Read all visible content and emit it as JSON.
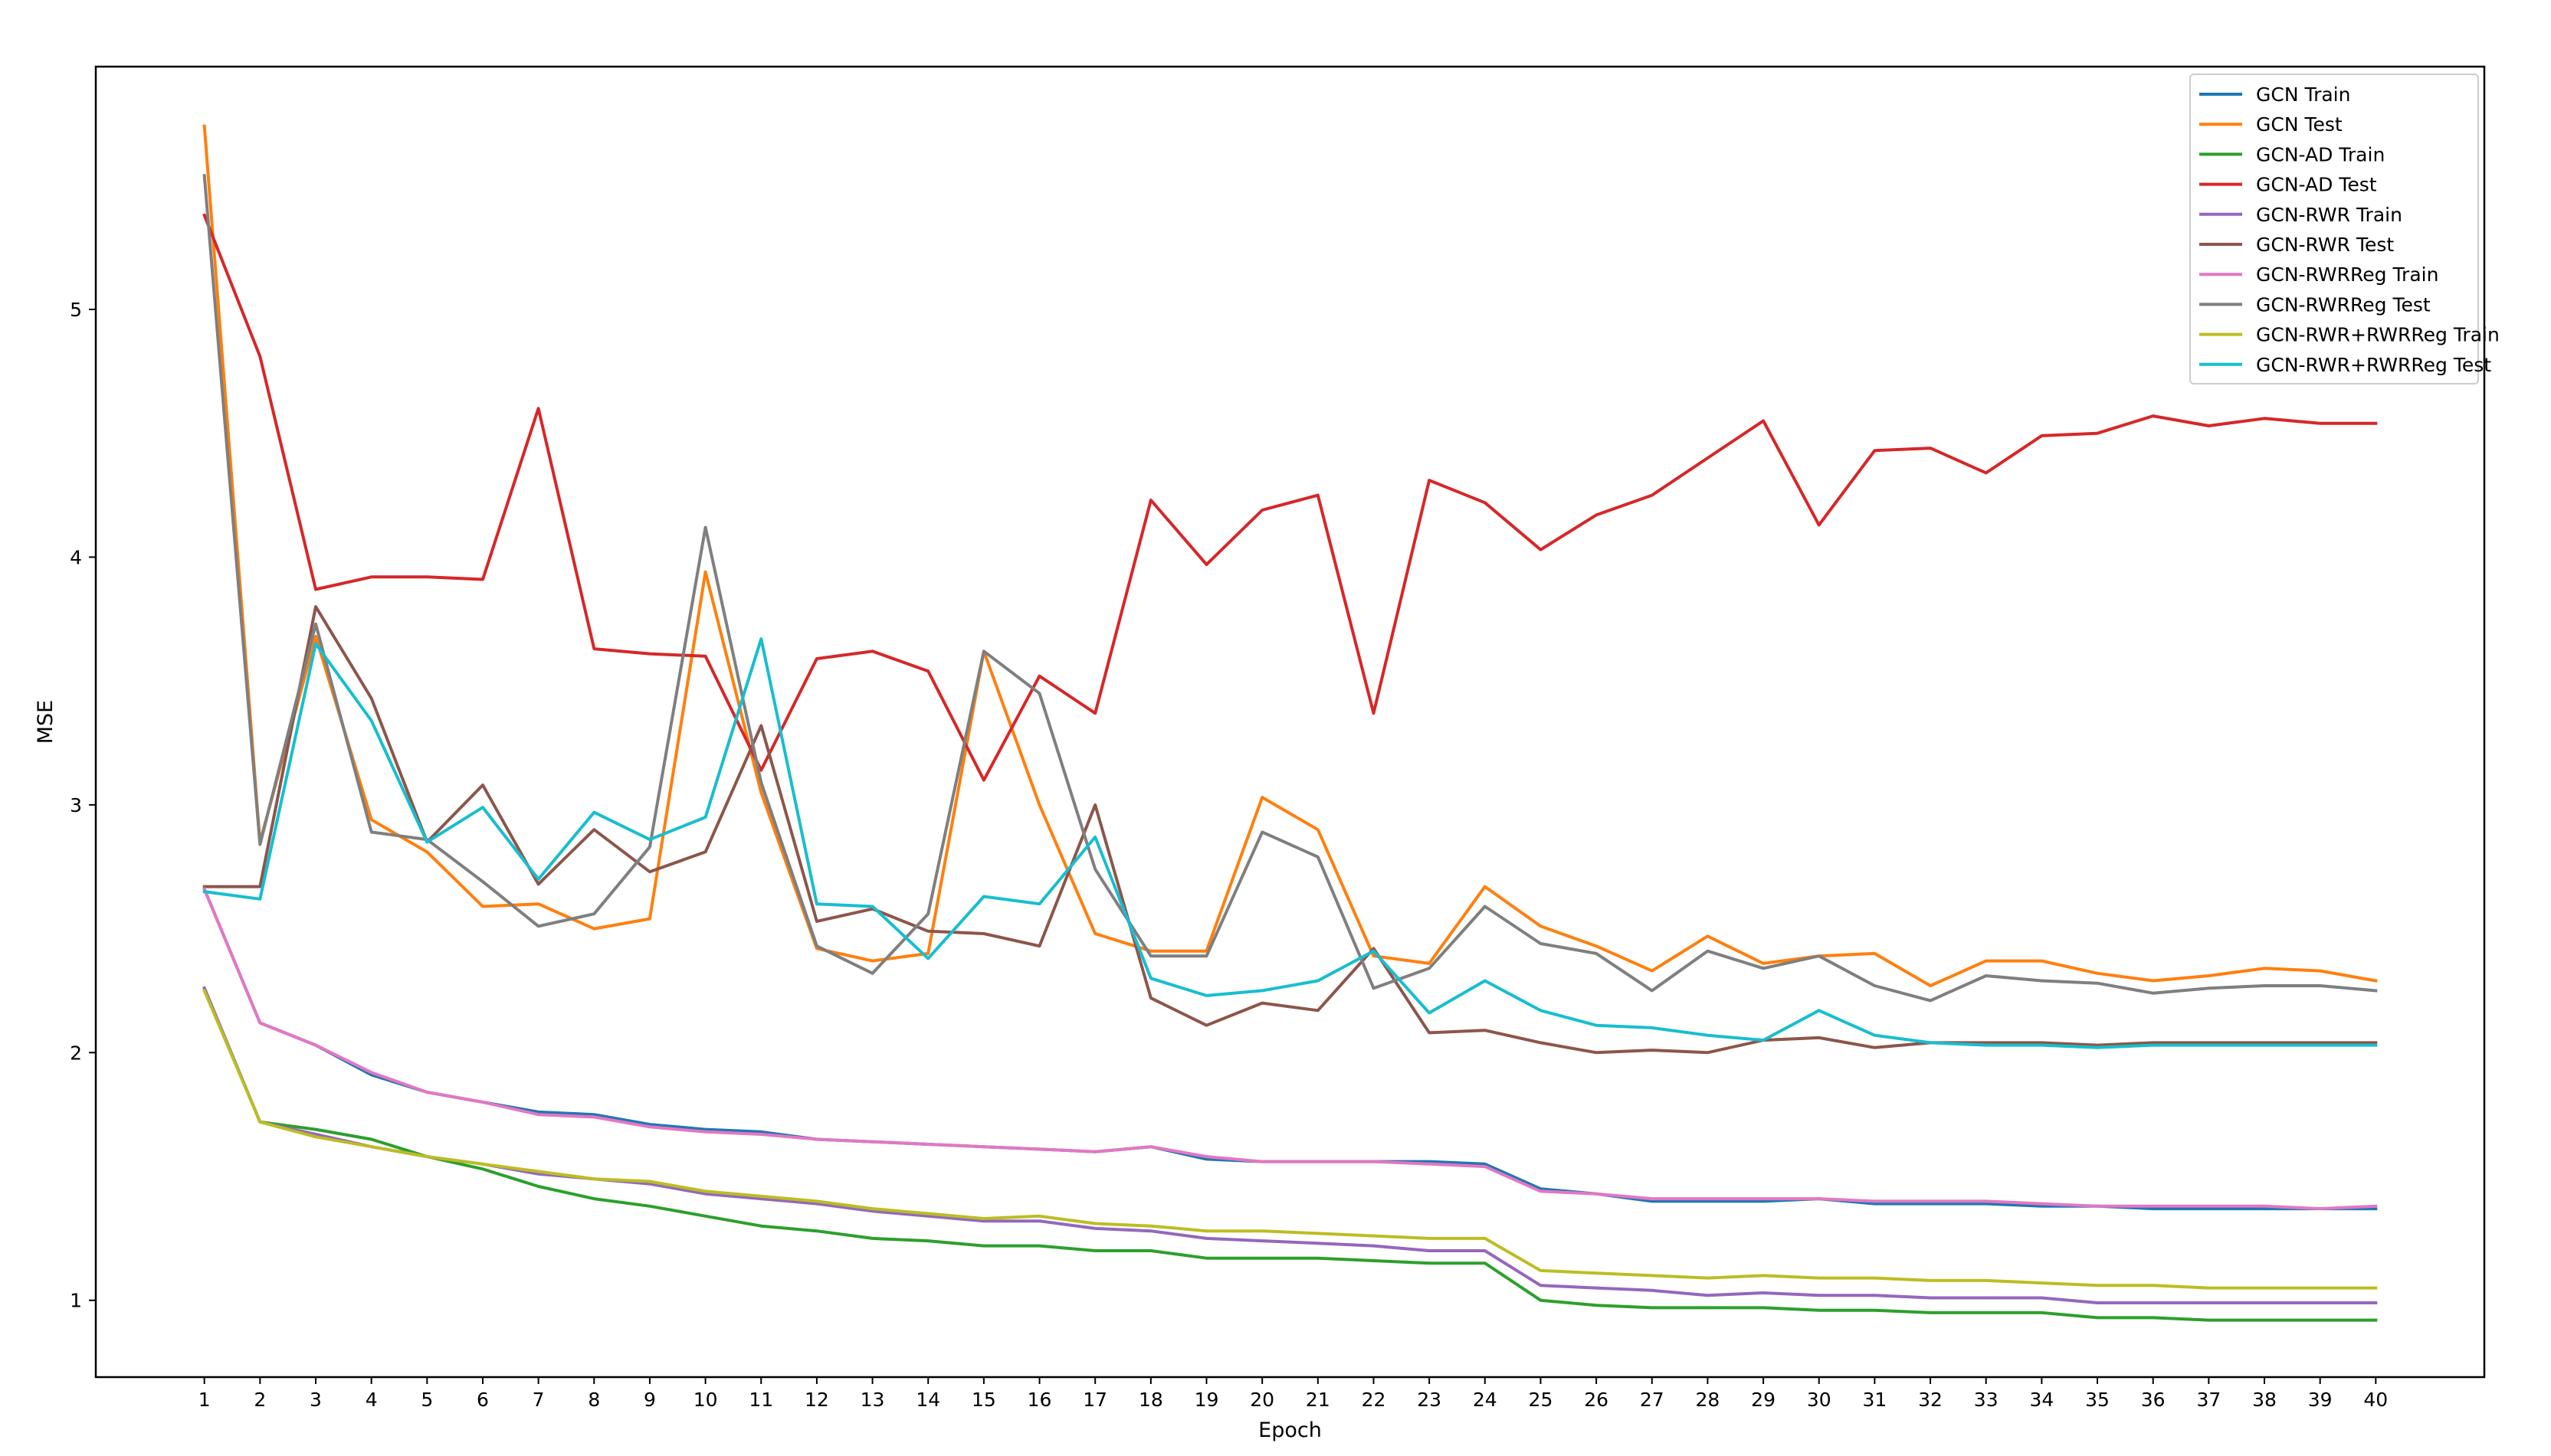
{
  "chart_data": {
    "type": "line",
    "title": "",
    "xlabel": "Epoch",
    "ylabel": "MSE",
    "xlim": [
      -0.95,
      41.95
    ],
    "ylim": [
      0.69,
      5.98
    ],
    "x": [
      1,
      2,
      3,
      4,
      5,
      6,
      7,
      8,
      9,
      10,
      11,
      12,
      13,
      14,
      15,
      16,
      17,
      18,
      19,
      20,
      21,
      22,
      23,
      24,
      25,
      26,
      27,
      28,
      29,
      30,
      31,
      32,
      33,
      34,
      35,
      36,
      37,
      38,
      39,
      40
    ],
    "x_ticks": [
      "1",
      "2",
      "3",
      "4",
      "5",
      "6",
      "7",
      "8",
      "9",
      "10",
      "11",
      "12",
      "13",
      "14",
      "15",
      "16",
      "17",
      "18",
      "19",
      "20",
      "21",
      "22",
      "23",
      "24",
      "25",
      "26",
      "27",
      "28",
      "29",
      "30",
      "31",
      "32",
      "33",
      "34",
      "35",
      "36",
      "37",
      "38",
      "39",
      "40"
    ],
    "y_ticks": [
      "1",
      "2",
      "3",
      "4",
      "5"
    ],
    "grid": false,
    "legend_position": "top-right",
    "series": [
      {
        "name": "GCN Train",
        "color": "#1f77b4",
        "values": [
          2.66,
          2.12,
          2.03,
          1.91,
          1.84,
          1.8,
          1.76,
          1.75,
          1.71,
          1.69,
          1.68,
          1.65,
          1.64,
          1.63,
          1.62,
          1.61,
          1.6,
          1.62,
          1.57,
          1.56,
          1.56,
          1.56,
          1.56,
          1.55,
          1.45,
          1.43,
          1.4,
          1.4,
          1.4,
          1.41,
          1.39,
          1.39,
          1.39,
          1.38,
          1.38,
          1.37,
          1.37,
          1.37,
          1.37,
          1.37
        ]
      },
      {
        "name": "GCN Test",
        "color": "#ff7f0e",
        "values": [
          5.74,
          2.85,
          3.68,
          2.94,
          2.81,
          2.59,
          2.6,
          2.5,
          2.54,
          3.94,
          3.05,
          2.42,
          2.37,
          2.4,
          3.62,
          3.0,
          2.48,
          2.41,
          2.41,
          3.03,
          2.9,
          2.39,
          2.36,
          2.67,
          2.51,
          2.43,
          2.33,
          2.47,
          2.36,
          2.39,
          2.4,
          2.27,
          2.37,
          2.37,
          2.32,
          2.29,
          2.31,
          2.34,
          2.33,
          2.29
        ]
      },
      {
        "name": "GCN-AD Train",
        "color": "#2ca02c",
        "values": [
          2.26,
          1.72,
          1.69,
          1.65,
          1.58,
          1.53,
          1.46,
          1.41,
          1.38,
          1.34,
          1.3,
          1.28,
          1.25,
          1.24,
          1.22,
          1.22,
          1.2,
          1.2,
          1.17,
          1.17,
          1.17,
          1.16,
          1.15,
          1.15,
          1.0,
          0.98,
          0.97,
          0.97,
          0.97,
          0.96,
          0.96,
          0.95,
          0.95,
          0.95,
          0.93,
          0.93,
          0.92,
          0.92,
          0.92,
          0.92
        ]
      },
      {
        "name": "GCN-AD Test",
        "color": "#d62728",
        "values": [
          5.38,
          4.81,
          3.87,
          3.92,
          3.92,
          3.91,
          4.6,
          3.63,
          3.61,
          3.6,
          3.14,
          3.59,
          3.62,
          3.54,
          3.1,
          3.52,
          3.37,
          4.23,
          3.97,
          4.19,
          4.25,
          3.37,
          4.31,
          4.22,
          4.03,
          4.17,
          4.25,
          4.4,
          4.55,
          4.13,
          4.43,
          4.44,
          4.34,
          4.49,
          4.5,
          4.57,
          4.53,
          4.56,
          4.54,
          4.54
        ]
      },
      {
        "name": "GCN-RWR Train",
        "color": "#9467bd",
        "values": [
          2.26,
          1.72,
          1.67,
          1.62,
          1.58,
          1.55,
          1.51,
          1.49,
          1.47,
          1.43,
          1.41,
          1.39,
          1.36,
          1.34,
          1.32,
          1.32,
          1.29,
          1.28,
          1.25,
          1.24,
          1.23,
          1.22,
          1.2,
          1.2,
          1.06,
          1.05,
          1.04,
          1.02,
          1.03,
          1.02,
          1.02,
          1.01,
          1.01,
          1.01,
          0.99,
          0.99,
          0.99,
          0.99,
          0.99,
          0.99
        ]
      },
      {
        "name": "GCN-RWR Test",
        "color": "#8c564b",
        "values": [
          2.67,
          2.67,
          3.8,
          3.43,
          2.85,
          3.08,
          2.68,
          2.9,
          2.73,
          2.81,
          3.32,
          2.53,
          2.58,
          2.49,
          2.48,
          2.43,
          3.0,
          2.22,
          2.11,
          2.2,
          2.17,
          2.42,
          2.08,
          2.09,
          2.04,
          2.0,
          2.01,
          2.0,
          2.05,
          2.06,
          2.02,
          2.04,
          2.04,
          2.04,
          2.03,
          2.04,
          2.04,
          2.04,
          2.04,
          2.04
        ]
      },
      {
        "name": "GCN-RWRReg Train",
        "color": "#e377c2",
        "values": [
          2.66,
          2.12,
          2.03,
          1.92,
          1.84,
          1.8,
          1.75,
          1.74,
          1.7,
          1.68,
          1.67,
          1.65,
          1.64,
          1.63,
          1.62,
          1.61,
          1.6,
          1.62,
          1.58,
          1.56,
          1.56,
          1.56,
          1.55,
          1.54,
          1.44,
          1.43,
          1.41,
          1.41,
          1.41,
          1.41,
          1.4,
          1.4,
          1.4,
          1.39,
          1.38,
          1.38,
          1.38,
          1.38,
          1.37,
          1.38
        ]
      },
      {
        "name": "GCN-RWRReg Test",
        "color": "#7f7f7f",
        "values": [
          5.54,
          2.84,
          3.73,
          2.89,
          2.86,
          2.69,
          2.51,
          2.56,
          2.83,
          4.12,
          3.09,
          2.43,
          2.32,
          2.56,
          3.62,
          3.45,
          2.74,
          2.39,
          2.39,
          2.89,
          2.79,
          2.26,
          2.34,
          2.59,
          2.44,
          2.4,
          2.25,
          2.41,
          2.34,
          2.39,
          2.27,
          2.21,
          2.31,
          2.29,
          2.28,
          2.24,
          2.26,
          2.27,
          2.27,
          2.25
        ]
      },
      {
        "name": "GCN-RWR+RWRReg Train",
        "color": "#bcbd22",
        "values": [
          2.25,
          1.72,
          1.66,
          1.62,
          1.58,
          1.55,
          1.52,
          1.49,
          1.48,
          1.44,
          1.42,
          1.4,
          1.37,
          1.35,
          1.33,
          1.34,
          1.31,
          1.3,
          1.28,
          1.28,
          1.27,
          1.26,
          1.25,
          1.25,
          1.12,
          1.11,
          1.1,
          1.09,
          1.1,
          1.09,
          1.09,
          1.08,
          1.08,
          1.07,
          1.06,
          1.06,
          1.05,
          1.05,
          1.05,
          1.05
        ]
      },
      {
        "name": "GCN-RWR+RWRReg Test",
        "color": "#17becf",
        "values": [
          2.65,
          2.62,
          3.65,
          3.34,
          2.85,
          2.99,
          2.7,
          2.97,
          2.86,
          2.95,
          3.67,
          2.6,
          2.59,
          2.38,
          2.63,
          2.6,
          2.87,
          2.3,
          2.23,
          2.25,
          2.29,
          2.41,
          2.16,
          2.29,
          2.17,
          2.11,
          2.1,
          2.07,
          2.05,
          2.17,
          2.07,
          2.04,
          2.03,
          2.03,
          2.02,
          2.03,
          2.03,
          2.03,
          2.03,
          2.03
        ]
      }
    ]
  }
}
